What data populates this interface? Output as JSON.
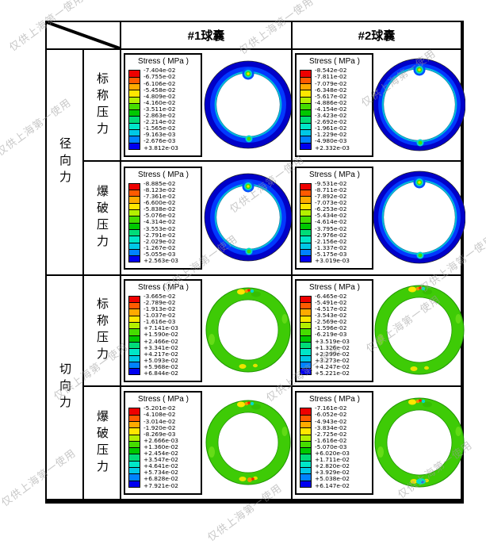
{
  "watermark": {
    "text": "仅供上海第一使用"
  },
  "header": {
    "col1": "#1球囊",
    "col2": "#2球囊"
  },
  "row_labels": {
    "force_radial": "径向力",
    "force_tangential": "切向力",
    "pressure_nominal": "标称压力",
    "pressure_burst": "爆破压力"
  },
  "legend": {
    "title": "Stress ( MPa )",
    "band_colors": [
      "#ee0000",
      "#ff5a00",
      "#ffaa00",
      "#ffe600",
      "#b4f000",
      "#46dc00",
      "#00c800",
      "#00dc78",
      "#00e6c8",
      "#00c8e6",
      "#0082ff",
      "#0000f0"
    ]
  },
  "colors": {
    "radial_ring_outer": "#0101c8",
    "radial_ring_mid": "#0238ff",
    "radial_ring_inner_edge": "#00b6dc",
    "tangential_ring": "#3ecb06",
    "spot_yellow": "#ffe600",
    "spot_red": "#ff1e00",
    "spot_orange": "#ff8c00",
    "spot_cyan": "#00dcc8",
    "spot_green": "#46dc00",
    "spot_blue": "#0050ff"
  },
  "chart_data": [
    {
      "type": "heatmap",
      "title": "Stress ( MPa )",
      "force": "径向力",
      "pressure": "标称压力",
      "balloon": "#1球囊",
      "ring": "radial",
      "levels": [
        "-7.404e-02",
        "-6.755e-02",
        "-6.106e-02",
        "-5.458e-02",
        "-4.809e-02",
        "-4.160e-02",
        "-3.511e-02",
        "-2.863e-02",
        "-2.214e-02",
        "-1.565e-02",
        "-9.163e-03",
        "-2.676e-03",
        "+3.812e-03"
      ]
    },
    {
      "type": "heatmap",
      "title": "Stress ( MPa )",
      "force": "径向力",
      "pressure": "标称压力",
      "balloon": "#2球囊",
      "ring": "radial",
      "levels": [
        "-8.542e-02",
        "-7.811e-02",
        "-7.079e-02",
        "-6.348e-02",
        "-5.617e-02",
        "-4.886e-02",
        "-4.154e-02",
        "-3.423e-02",
        "-2.692e-02",
        "-1.961e-02",
        "-1.229e-02",
        "-4.980e-03",
        "+2.332e-03"
      ]
    },
    {
      "type": "heatmap",
      "title": "Stress ( MPa )",
      "force": "径向力",
      "pressure": "爆破压力",
      "balloon": "#1球囊",
      "ring": "radial",
      "levels": [
        "-8.885e-02",
        "-8.123e-02",
        "-7.361e-02",
        "-6.600e-02",
        "-5.838e-02",
        "-5.076e-02",
        "-4.314e-02",
        "-3.553e-02",
        "-2.791e-02",
        "-2.029e-02",
        "-1.267e-02",
        "-5.055e-03",
        "+2.563e-03"
      ]
    },
    {
      "type": "heatmap",
      "title": "Stress ( MPa )",
      "force": "径向力",
      "pressure": "爆破压力",
      "balloon": "#2球囊",
      "ring": "radial",
      "levels": [
        "-9.531e-02",
        "-8.711e-02",
        "-7.892e-02",
        "-7.073e-02",
        "-6.253e-02",
        "-5.434e-02",
        "-4.614e-02",
        "-3.795e-02",
        "-2.976e-02",
        "-2.156e-02",
        "-1.337e-02",
        "-5.175e-03",
        "+3.019e-03"
      ]
    },
    {
      "type": "heatmap",
      "title": "Stress ( MPa )",
      "force": "切向力",
      "pressure": "标称压力",
      "balloon": "#1球囊",
      "ring": "tangential",
      "levels": [
        "-3.665e-02",
        "-2.789e-02",
        "-1.913e-02",
        "-1.037e-02",
        "-1.616e-03",
        "+7.141e-03",
        "+1.590e-02",
        "+2.466e-02",
        "+3.341e-02",
        "+4.217e-02",
        "+5.093e-02",
        "+5.968e-02",
        "+6.844e-02"
      ]
    },
    {
      "type": "heatmap",
      "title": "Stress ( MPa )",
      "force": "切向力",
      "pressure": "标称压力",
      "balloon": "#2球囊",
      "ring": "tangential",
      "levels": [
        "-6.465e-02",
        "-5.491e-02",
        "-4.517e-02",
        "-3.543e-02",
        "-2.569e-02",
        "-1.596e-02",
        "-6.219e-03",
        "+3.519e-03",
        "+1.326e-02",
        "+2.299e-02",
        "+3.273e-02",
        "+4.247e-02",
        "+5.221e-02"
      ]
    },
    {
      "type": "heatmap",
      "title": "Stress ( MPa )",
      "force": "切向力",
      "pressure": "爆破压力",
      "balloon": "#1球囊",
      "ring": "tangential",
      "levels": [
        "-5.201e-02",
        "-4.108e-02",
        "-3.014e-02",
        "-1.920e-02",
        "-8.269e-03",
        "+2.666e-03",
        "+1.360e-02",
        "+2.454e-02",
        "+3.547e-02",
        "+4.641e-02",
        "+5.734e-02",
        "+6.828e-02",
        "+7.921e-02"
      ]
    },
    {
      "type": "heatmap",
      "title": "Stress ( MPa )",
      "force": "切向力",
      "pressure": "爆破压力",
      "balloon": "#2球囊",
      "ring": "tangential",
      "levels": [
        "-7.161e-02",
        "-6.052e-02",
        "-4.943e-02",
        "-3.834e-02",
        "-2.725e-02",
        "-1.616e-02",
        "-5.070e-03",
        "+6.020e-03",
        "+1.711e-02",
        "+2.820e-02",
        "+3.929e-02",
        "+5.038e-02",
        "+6.147e-02"
      ]
    }
  ]
}
